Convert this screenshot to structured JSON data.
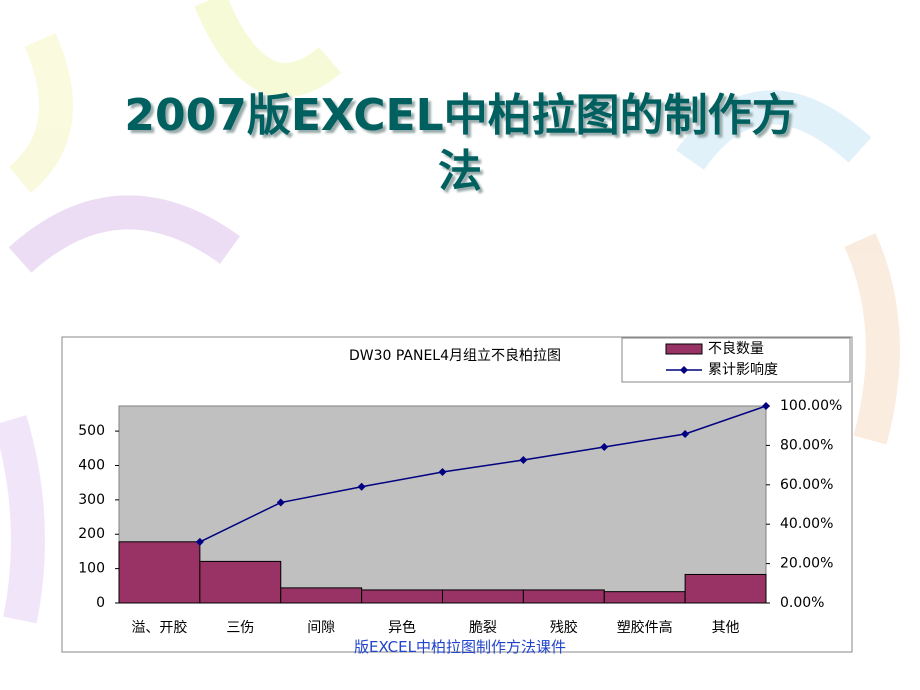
{
  "slide": {
    "title": "2007版EXCEL中柏拉图的制作方法",
    "footer": "版EXCEL中柏拉图制作方法课件"
  },
  "chart_data": {
    "type": "bar",
    "title": "DW30 PANEL4月组立不良柏拉图",
    "categories": [
      "溢、开胶",
      "三伤",
      "间隙",
      "异色",
      "脆裂",
      "残胶",
      "塑胶件高",
      "其他"
    ],
    "series": [
      {
        "name": "不良数量",
        "color": "#993366",
        "values": [
          178,
          121,
          44,
          38,
          38,
          38,
          33,
          83
        ]
      },
      {
        "name": "累计影响度",
        "color": "#000080",
        "axis": "y2",
        "values": [
          31,
          51,
          59,
          66.5,
          72.6,
          79.2,
          85.8,
          100
        ]
      }
    ],
    "ylim": [
      0,
      573
    ],
    "yticks": [
      0,
      100,
      200,
      300,
      400,
      500
    ],
    "y2lim": [
      0,
      100
    ],
    "y2ticks": [
      {
        "value": 0,
        "label": "0.00%"
      },
      {
        "value": 20,
        "label": "20.00%"
      },
      {
        "value": 40,
        "label": "40.00%"
      },
      {
        "value": 60,
        "label": "60.00%"
      },
      {
        "value": 80,
        "label": "80.00%"
      },
      {
        "value": 100,
        "label": "100.00%"
      }
    ],
    "plot_background": "#c0c0c0",
    "legend": "top-right"
  }
}
